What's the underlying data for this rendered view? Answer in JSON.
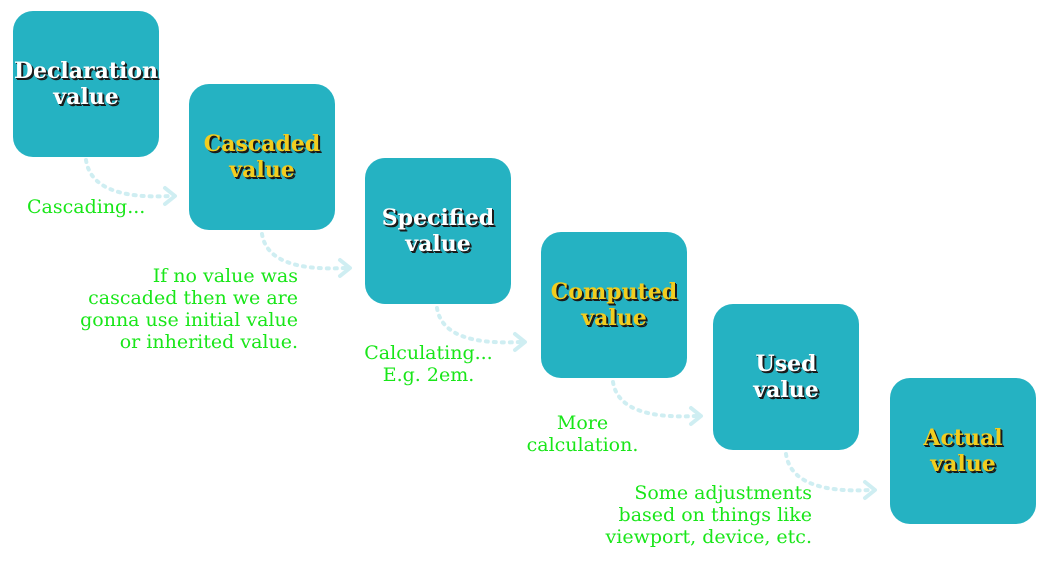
{
  "steps": [
    {
      "label": "Declaration\nvalue",
      "style": "white"
    },
    {
      "label": "Cascaded\nvalue",
      "style": "gold"
    },
    {
      "label": "Specified\nvalue",
      "style": "white"
    },
    {
      "label": "Computed\nvalue",
      "style": "gold"
    },
    {
      "label": "Used\nvalue",
      "style": "white"
    },
    {
      "label": "Actual\nvalue",
      "style": "gold"
    }
  ],
  "notes": [
    "Cascading...",
    "If no value was\ncascaded then we are\ngonna use initial value\nor inherited value.",
    "Calculating...\nE.g. 2em.",
    "More\ncalculation.",
    "Some adjustments\nbased on things like\nviewport, device, etc."
  ],
  "colors": {
    "box_fill": "#25b2c2",
    "label_white": "#ffffff",
    "label_gold": "#f2cd1f",
    "note_text": "#19e619",
    "arrow": "#cfeef2"
  }
}
